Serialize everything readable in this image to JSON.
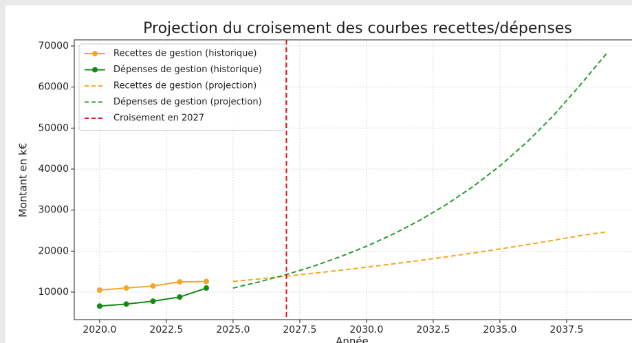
{
  "chart_data": {
    "type": "line",
    "title": "Projection du croisement des courbes recettes/dépenses",
    "x_label": "Année",
    "y_label": "Montant en k€",
    "xlim": [
      2019.05,
      2039.95
    ],
    "ylim": [
      3300,
      71500
    ],
    "xticks": [
      {
        "value": 2020,
        "label": "2020.0"
      },
      {
        "value": 2022.5,
        "label": "2022.5"
      },
      {
        "value": 2025,
        "label": "2025.0"
      },
      {
        "value": 2027.5,
        "label": "2027.5"
      },
      {
        "value": 2030,
        "label": "2030.0"
      },
      {
        "value": 2032.5,
        "label": "2032.5"
      },
      {
        "value": 2035,
        "label": "2035.0"
      },
      {
        "value": 2037.5,
        "label": "2037.5"
      }
    ],
    "yticks": [
      10000,
      20000,
      30000,
      40000,
      50000,
      60000,
      70000
    ],
    "grid": true,
    "legend": "upper left",
    "series": [
      {
        "name": "Recettes de gestion (historique)",
        "color": "#f5a623",
        "style": "solid",
        "marker": true,
        "x": [
          2020,
          2021,
          2022,
          2023,
          2024
        ],
        "values": [
          10500,
          11000,
          11500,
          12500,
          12600
        ]
      },
      {
        "name": "Dépenses de gestion (historique)",
        "color": "#138a13",
        "style": "solid",
        "marker": true,
        "x": [
          2020,
          2021,
          2022,
          2023,
          2024
        ],
        "values": [
          6600,
          7100,
          7800,
          8800,
          11000
        ]
      },
      {
        "name": "Recettes de gestion (projection)",
        "color": "#f5a623",
        "style": "dashed",
        "marker": false,
        "x": [
          2025,
          2026,
          2027,
          2028,
          2029,
          2030,
          2031,
          2032,
          2033,
          2034,
          2035,
          2036,
          2037,
          2038,
          2039
        ],
        "values": [
          12600,
          13230,
          13890,
          14590,
          15320,
          16080,
          16890,
          17730,
          18620,
          19550,
          20520,
          21550,
          22630,
          23760,
          24700
        ]
      },
      {
        "name": "Dépenses de gestion (projection)",
        "color": "#2a9a2a",
        "style": "dashed",
        "marker": false,
        "x": [
          2025,
          2026,
          2027,
          2028,
          2029,
          2030,
          2031,
          2032,
          2033,
          2034,
          2035,
          2036,
          2037,
          2038,
          2039
        ],
        "values": [
          11000,
          12540,
          14300,
          16300,
          18580,
          21180,
          24140,
          27520,
          31380,
          35770,
          40780,
          46490,
          53000,
          60420,
          68200
        ]
      }
    ],
    "vline": {
      "name": "Croisement en 2027",
      "color": "#e8141a",
      "x": 2027
    }
  }
}
